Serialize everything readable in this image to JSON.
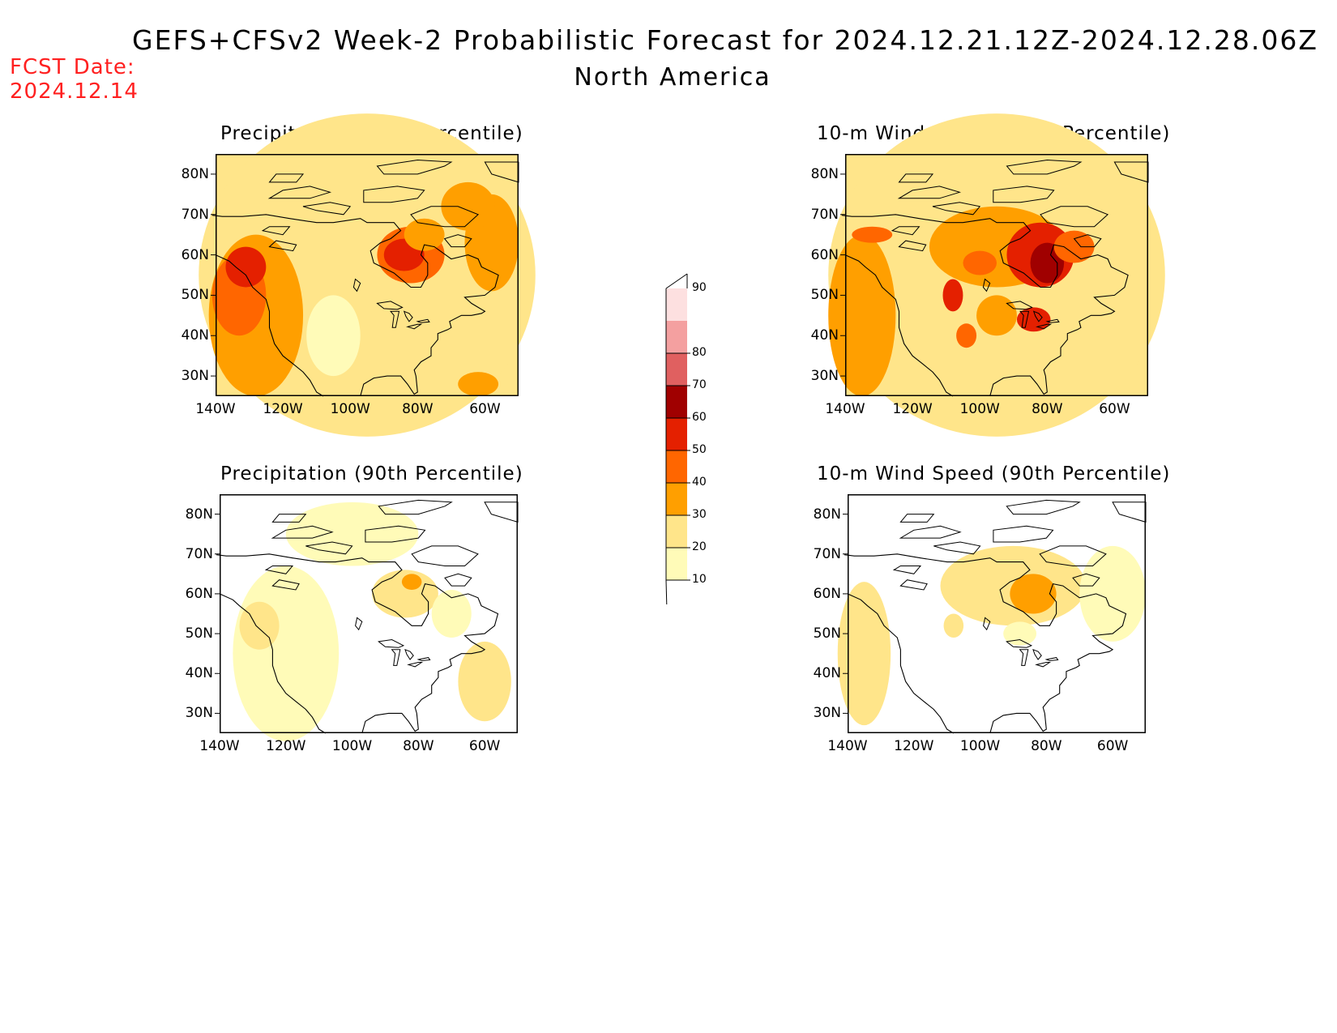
{
  "header": {
    "title": "GEFS+CFSv2 Week-2 Probabilistic Forecast for 2024.12.21.12Z-2024.12.28.06Z",
    "subtitle": "North America",
    "fcst_label": "FCST Date:",
    "fcst_date": "2024.12.14"
  },
  "panels": [
    {
      "title": "Precipitation (75th Percentile)",
      "variable": "precip",
      "percentile": 75
    },
    {
      "title": "10-m Wind Speed (75th Percentile)",
      "variable": "wind",
      "percentile": 75
    },
    {
      "title": "Precipitation (90th Percentile)",
      "variable": "precip",
      "percentile": 90
    },
    {
      "title": "10-m Wind Speed (90th Percentile)",
      "variable": "wind",
      "percentile": 90
    }
  ],
  "axes": {
    "lat_labels": [
      "80N",
      "70N",
      "60N",
      "50N",
      "40N",
      "30N"
    ],
    "lon_labels": [
      "140W",
      "120W",
      "100W",
      "80W",
      "60W"
    ]
  },
  "colorbar": {
    "levels": [
      "10",
      "20",
      "30",
      "40",
      "50",
      "60",
      "70",
      "80",
      "90"
    ],
    "colors": [
      "#fffbb8",
      "#ffe58a",
      "#ff9f00",
      "#ff6600",
      "#e42000",
      "#a00000",
      "#e06060",
      "#f4a0a0",
      "#fde0e0"
    ]
  }
}
